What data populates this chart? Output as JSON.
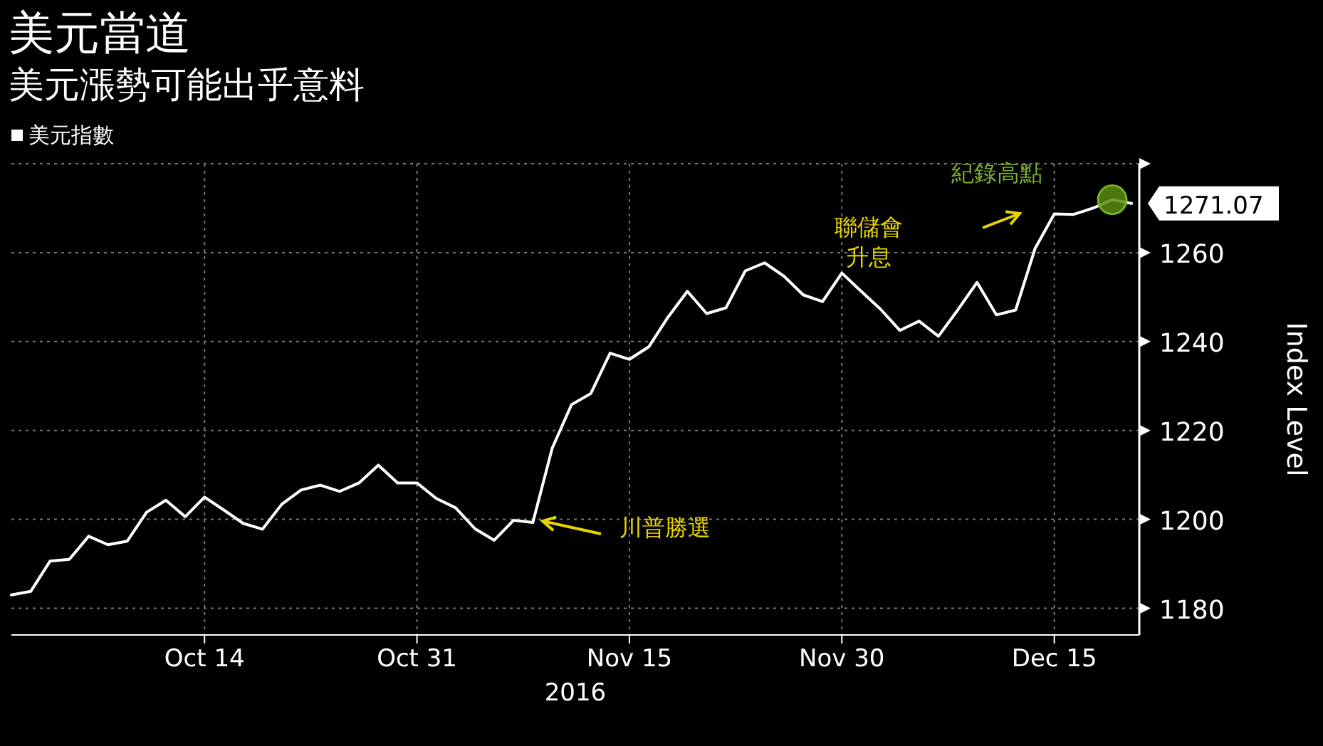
{
  "chart_data": {
    "type": "line",
    "title": "美元當道",
    "subtitle": "美元漲勢可能出乎意料",
    "xlabel": "2016",
    "ylabel": "Index Level",
    "categories": [
      null,
      null,
      null,
      null,
      null,
      null,
      null,
      null,
      null,
      null,
      "Oct 14",
      null,
      null,
      null,
      null,
      null,
      null,
      null,
      null,
      null,
      null,
      "Oct 31",
      null,
      null,
      null,
      null,
      null,
      null,
      null,
      null,
      null,
      null,
      "Nov 15",
      null,
      null,
      null,
      null,
      null,
      null,
      null,
      null,
      null,
      null,
      "Nov 30",
      null,
      null,
      null,
      null,
      null,
      null,
      null,
      null,
      null,
      null,
      "Dec 15",
      null,
      null,
      null,
      null
    ],
    "series": [
      {
        "name": "美元指數",
        "color": "#ffffff",
        "values": [
          1183.0,
          1183.8,
          1190.6,
          1191.0,
          1196.2,
          1194.3,
          1195.1,
          1201.6,
          1204.3,
          1200.6,
          1205.0,
          1202.1,
          1199.1,
          1197.8,
          1203.4,
          1206.6,
          1207.7,
          1206.3,
          1208.2,
          1212.2,
          1208.2,
          1208.2,
          1204.7,
          1202.6,
          1197.9,
          1195.3,
          1199.8,
          1199.3,
          1216.0,
          1225.8,
          1228.3,
          1237.4,
          1236.0,
          1238.8,
          1245.5,
          1251.3,
          1246.3,
          1247.6,
          1255.9,
          1257.7,
          1254.7,
          1250.5,
          1249.0,
          1255.4,
          1251.3,
          1247.3,
          1242.5,
          1244.6,
          1241.2,
          1247.1,
          1253.3,
          1246.0,
          1247.1,
          1260.9,
          1268.7,
          1268.6,
          1270.0,
          1271.9,
          1271.07
        ],
        "value_labels": [
          null,
          null,
          null,
          null,
          null,
          null,
          null,
          null,
          null,
          null,
          null,
          null,
          null,
          null,
          null,
          null,
          null,
          null,
          null,
          null,
          null,
          null,
          null,
          null,
          null,
          null,
          null,
          null,
          null,
          null,
          null,
          null,
          null,
          null,
          null,
          null,
          null,
          null,
          null,
          null,
          null,
          null,
          null,
          null,
          null,
          null,
          null,
          null,
          null,
          null,
          null,
          null,
          null,
          null,
          null,
          null,
          null,
          null,
          "1271.07"
        ]
      }
    ],
    "ylim": [
      1174,
      1280
    ],
    "yticks": [
      1180,
      1200,
      1220,
      1240,
      1260,
      {
        "value": 1280,
        "label": null
      }
    ],
    "grid": true,
    "legend": "top left",
    "marker": "none",
    "line_style": "solid",
    "annotations": [
      "川普勝選",
      "聯儲會",
      "升息",
      "紀錄高點"
    ]
  }
}
